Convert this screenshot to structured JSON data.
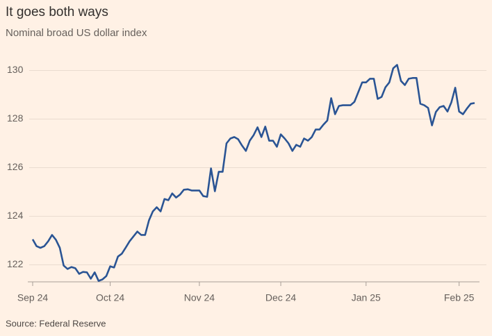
{
  "chart_data": {
    "type": "line",
    "title": "It goes both ways",
    "subtitle": "Nominal broad US dollar index",
    "source": "Source: Federal Reserve",
    "color": "#2a5494",
    "grid": true,
    "ylim": [
      121.3,
      130.5
    ],
    "yticks": [
      122,
      124,
      126,
      128,
      130
    ],
    "categories": [
      "Sep 24",
      null,
      null,
      null,
      null,
      null,
      null,
      null,
      null,
      null,
      null,
      null,
      null,
      null,
      null,
      null,
      null,
      null,
      null,
      null,
      "Oct 24",
      null,
      null,
      null,
      null,
      null,
      null,
      null,
      null,
      null,
      null,
      null,
      null,
      null,
      null,
      null,
      null,
      null,
      null,
      null,
      null,
      null,
      null,
      "Nov 24",
      null,
      null,
      null,
      null,
      null,
      null,
      null,
      null,
      null,
      null,
      null,
      null,
      null,
      null,
      null,
      null,
      null,
      null,
      null,
      null,
      "Dec 24",
      null,
      null,
      null,
      null,
      null,
      null,
      null,
      null,
      null,
      null,
      null,
      null,
      null,
      null,
      null,
      null,
      null,
      null,
      null,
      null,
      null,
      "Jan 25",
      null,
      null,
      null,
      null,
      null,
      null,
      null,
      null,
      null,
      null,
      null,
      null,
      null,
      null,
      null,
      null,
      null,
      null,
      null,
      null,
      null,
      null,
      null,
      "Feb 25",
      null,
      null,
      null,
      null
    ],
    "values": [
      123.05,
      122.77,
      122.7,
      122.77,
      122.97,
      123.23,
      123.03,
      122.7,
      121.97,
      121.83,
      121.91,
      121.86,
      121.63,
      121.71,
      121.69,
      121.43,
      121.69,
      121.34,
      121.4,
      121.54,
      121.94,
      121.89,
      122.34,
      122.46,
      122.71,
      122.97,
      123.17,
      123.37,
      123.23,
      123.23,
      123.83,
      124.2,
      124.37,
      124.2,
      124.71,
      124.66,
      124.94,
      124.77,
      124.89,
      125.09,
      125.11,
      125.06,
      125.06,
      125.06,
      124.83,
      124.8,
      125.97,
      125.03,
      125.83,
      125.83,
      127.0,
      127.2,
      127.26,
      127.17,
      126.91,
      126.69,
      127.11,
      127.34,
      127.66,
      127.26,
      127.69,
      127.11,
      127.11,
      126.86,
      127.37,
      127.2,
      127.0,
      126.69,
      126.94,
      126.86,
      127.2,
      127.11,
      127.26,
      127.57,
      127.57,
      127.77,
      127.94,
      128.86,
      128.2,
      128.54,
      128.57,
      128.57,
      128.57,
      128.71,
      129.11,
      129.51,
      129.51,
      129.66,
      129.66,
      128.83,
      128.91,
      129.31,
      129.51,
      130.09,
      130.23,
      129.57,
      129.4,
      129.66,
      129.69,
      129.69,
      128.63,
      128.57,
      128.46,
      127.74,
      128.29,
      128.49,
      128.54,
      128.31,
      128.69,
      129.29,
      128.31,
      128.2,
      128.43,
      128.63,
      128.66
    ]
  }
}
